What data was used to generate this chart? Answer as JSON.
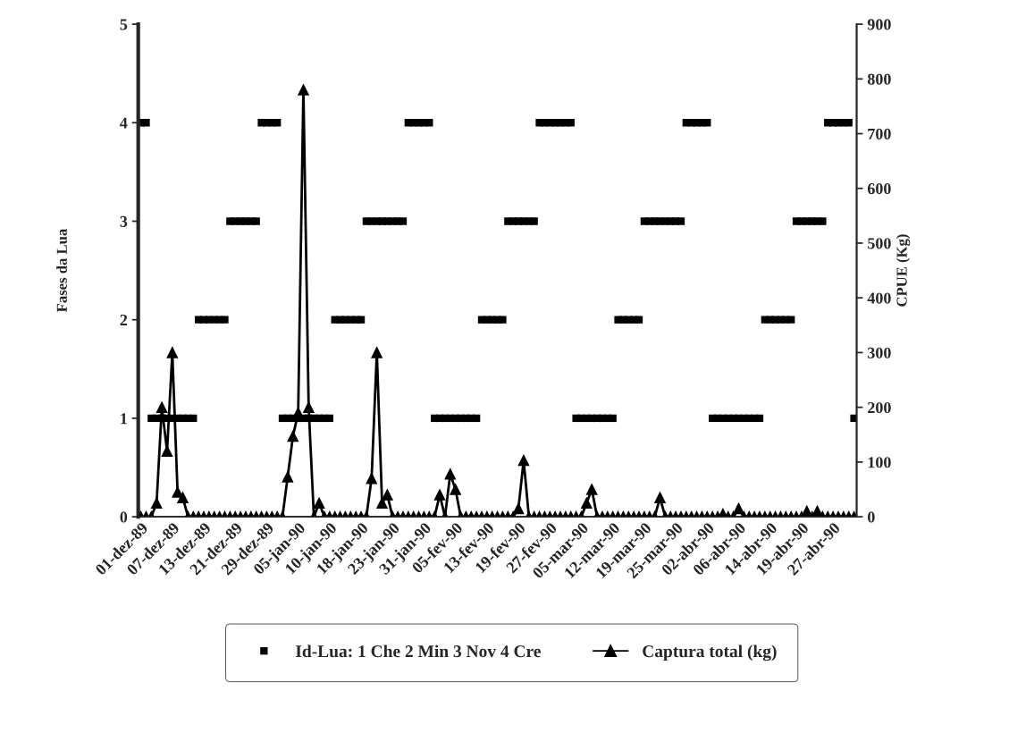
{
  "chart_data": {
    "type": "line",
    "categories": [
      "01-dez-89",
      null,
      null,
      null,
      null,
      null,
      "07-dez-89",
      null,
      null,
      null,
      null,
      null,
      "13-dez-89",
      null,
      null,
      null,
      null,
      null,
      "21-dez-89",
      null,
      null,
      null,
      null,
      null,
      "29-dez-89",
      null,
      null,
      null,
      null,
      null,
      "05-jan-90",
      null,
      null,
      null,
      null,
      null,
      "10-jan-90",
      null,
      null,
      null,
      null,
      null,
      "18-jan-90",
      null,
      null,
      null,
      null,
      null,
      "23-jan-90",
      null,
      null,
      null,
      null,
      null,
      "31-jan-90",
      null,
      null,
      null,
      null,
      null,
      "05-fev-90",
      null,
      null,
      null,
      null,
      null,
      "13-fev-90",
      null,
      null,
      null,
      null,
      null,
      "19-fev-90",
      null,
      null,
      null,
      null,
      null,
      "27-fev-90",
      null,
      null,
      null,
      null,
      null,
      "05-mar-90",
      null,
      null,
      null,
      null,
      null,
      "12-mar-90",
      null,
      null,
      null,
      null,
      null,
      "19-mar-90",
      null,
      null,
      null,
      null,
      null,
      "25-mar-90",
      null,
      null,
      null,
      null,
      null,
      "02-abr-90",
      null,
      null,
      null,
      null,
      null,
      "06-abr-90",
      null,
      null,
      null,
      null,
      null,
      "14-abr-90",
      null,
      null,
      null,
      null,
      null,
      "19-abr-90",
      null,
      null,
      null,
      null,
      null,
      "27-abr-90",
      null,
      null,
      null,
      null
    ],
    "series": [
      {
        "name": "Id-Lua: 1 Che 2 Min 3 Nov 4 Cre",
        "type": "scatter",
        "marker": "square",
        "color": "#000000",
        "values": [
          4,
          4,
          1,
          1,
          1,
          1,
          1,
          1,
          1,
          1,
          1,
          2,
          2,
          2,
          2,
          2,
          2,
          3,
          3,
          3,
          3,
          3,
          3,
          4,
          4,
          4,
          4,
          1,
          1,
          1,
          1,
          1,
          1,
          1,
          1,
          1,
          1,
          2,
          2,
          2,
          2,
          2,
          2,
          3,
          3,
          3,
          3,
          3,
          3,
          3,
          3,
          4,
          4,
          4,
          4,
          4,
          1,
          1,
          1,
          1,
          1,
          1,
          1,
          1,
          1,
          2,
          2,
          2,
          2,
          2,
          3,
          3,
          3,
          3,
          3,
          3,
          4,
          4,
          4,
          4,
          4,
          4,
          4,
          1,
          1,
          1,
          1,
          1,
          1,
          1,
          1,
          2,
          2,
          2,
          2,
          2,
          3,
          3,
          3,
          3,
          3,
          3,
          3,
          3,
          4,
          4,
          4,
          4,
          4,
          1,
          1,
          1,
          1,
          1,
          1,
          1,
          1,
          1,
          1,
          2,
          2,
          2,
          2,
          2,
          2,
          3,
          3,
          3,
          3,
          3,
          3,
          4,
          4,
          4,
          4,
          4,
          1
        ]
      },
      {
        "name": "Captura total (kg)",
        "marker": "triangle",
        "axis": "y2",
        "color": "#000000",
        "values": [
          0,
          0,
          0,
          25,
          200,
          120,
          300,
          45,
          35,
          0,
          0,
          0,
          0,
          0,
          0,
          0,
          0,
          0,
          0,
          0,
          0,
          0,
          0,
          0,
          0,
          0,
          0,
          0,
          73,
          147,
          190,
          780,
          200,
          0,
          25,
          0,
          0,
          0,
          0,
          0,
          0,
          0,
          0,
          0,
          70,
          300,
          25,
          40,
          0,
          0,
          0,
          0,
          0,
          0,
          0,
          0,
          0,
          40,
          0,
          78,
          50,
          0,
          0,
          0,
          0,
          0,
          0,
          0,
          0,
          0,
          0,
          0,
          15,
          103,
          0,
          0,
          0,
          0,
          0,
          0,
          0,
          0,
          0,
          0,
          0,
          25,
          50,
          0,
          0,
          0,
          0,
          0,
          0,
          0,
          0,
          0,
          0,
          0,
          0,
          35,
          0,
          0,
          0,
          0,
          0,
          0,
          0,
          0,
          0,
          0,
          0,
          5,
          0,
          0,
          15,
          0,
          0,
          0,
          0,
          0,
          0,
          0,
          0,
          0,
          0,
          0,
          0,
          10,
          0,
          10,
          0,
          0,
          0,
          0,
          0,
          0,
          0
        ]
      }
    ],
    "ylabel": "Fases da Lua",
    "y2label": "CPUE (Kg)",
    "ylim": [
      0,
      5
    ],
    "yticks": [
      0,
      1,
      2,
      3,
      4,
      5
    ],
    "y2lim": [
      0,
      900
    ],
    "y2ticks": [
      0,
      100,
      200,
      300,
      400,
      500,
      600,
      700,
      800,
      900
    ],
    "legend": "bottom"
  }
}
